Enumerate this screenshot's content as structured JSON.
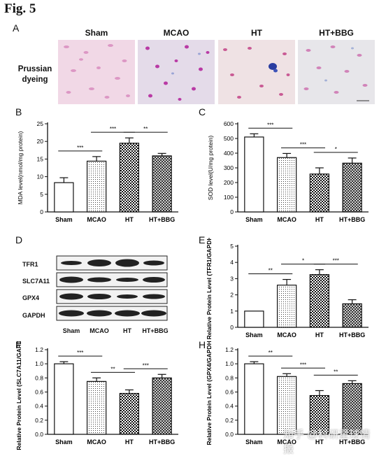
{
  "figure": {
    "title": "Fig. 5",
    "panels": [
      "A",
      "B",
      "C",
      "D",
      "E",
      "F",
      "H"
    ],
    "stain_label": "Prussian dyeing",
    "groups": [
      "Sham",
      "MCAO",
      "HT",
      "HT+BBG"
    ],
    "watermark": "知乎 @科研星球情报"
  },
  "chart_data": [
    {
      "panel": "B",
      "type": "bar",
      "categories": [
        "Sham",
        "MCAO",
        "HT",
        "HT+BBG"
      ],
      "values": [
        8.3,
        14.4,
        19.5,
        15.9
      ],
      "errors": [
        1.4,
        1.3,
        1.5,
        0.7
      ],
      "ylabel": "MDA level(nmol/mg protein)",
      "ylim": [
        0,
        25
      ],
      "yticks": [
        0,
        5,
        10,
        15,
        20,
        25
      ],
      "significance": [
        {
          "from": 0,
          "to": 1,
          "label": "***"
        },
        {
          "from": 1,
          "to": 2,
          "label": "***"
        },
        {
          "from": 2,
          "to": 3,
          "label": "**"
        }
      ]
    },
    {
      "panel": "C",
      "type": "bar",
      "categories": [
        "Sham",
        "MCAO",
        "HT",
        "HT+BBG"
      ],
      "values": [
        510,
        370,
        258,
        332
      ],
      "errors": [
        22,
        28,
        42,
        35
      ],
      "ylabel": "SOD level(U/mg protein)",
      "ylim": [
        0,
        600
      ],
      "yticks": [
        0,
        100,
        200,
        300,
        400,
        500,
        600
      ],
      "significance": [
        {
          "from": 0,
          "to": 1,
          "label": "***"
        },
        {
          "from": 1,
          "to": 2,
          "label": "***"
        },
        {
          "from": 2,
          "to": 3,
          "label": "*"
        }
      ]
    },
    {
      "panel": "E",
      "type": "bar",
      "categories": [
        "Sham",
        "MCAO",
        "HT",
        "HT+BBG"
      ],
      "values": [
        1.0,
        2.6,
        3.25,
        1.45
      ],
      "errors": [
        0.0,
        0.35,
        0.3,
        0.25
      ],
      "ylabel": "Relative Protein Level (TFR1/GAPDH)",
      "ylim": [
        0,
        5
      ],
      "yticks": [
        0,
        1,
        2,
        3,
        4,
        5
      ],
      "significance": [
        {
          "from": 0,
          "to": 1,
          "label": "**"
        },
        {
          "from": 1,
          "to": 2,
          "label": "*"
        },
        {
          "from": 2,
          "to": 3,
          "label": "***"
        }
      ]
    },
    {
      "panel": "F",
      "type": "bar",
      "categories": [
        "Sham",
        "MCAO",
        "HT",
        "HT+BBG"
      ],
      "values": [
        1.0,
        0.75,
        0.58,
        0.8
      ],
      "errors": [
        0.03,
        0.05,
        0.05,
        0.05
      ],
      "ylabel": "Relative Protein Level (SLC7A11/GAPDH)",
      "ylim": [
        0,
        1.2
      ],
      "yticks": [
        "0.0",
        "0.2",
        "0.4",
        "0.6",
        "0.8",
        "1.0",
        "1.2"
      ],
      "significance": [
        {
          "from": 0,
          "to": 1,
          "label": "***"
        },
        {
          "from": 1,
          "to": 2,
          "label": "**"
        },
        {
          "from": 2,
          "to": 3,
          "label": "***"
        }
      ]
    },
    {
      "panel": "H",
      "type": "bar",
      "categories": [
        "Sham",
        "MCAO",
        "HT",
        "HT+BBG"
      ],
      "values": [
        1.0,
        0.82,
        0.55,
        0.72
      ],
      "errors": [
        0.03,
        0.04,
        0.07,
        0.04
      ],
      "ylabel": "Relative Protein Level (GPX4/GAPDH)",
      "ylim": [
        0,
        1.2
      ],
      "yticks": [
        "0.0",
        "0.2",
        "0.4",
        "0.6",
        "0.8",
        "1.0",
        "1.2"
      ],
      "significance": [
        {
          "from": 0,
          "to": 1,
          "label": "**"
        },
        {
          "from": 1,
          "to": 2,
          "label": "***"
        },
        {
          "from": 2,
          "to": 3,
          "label": "**"
        }
      ]
    }
  ],
  "western_blot": {
    "proteins": [
      "TFR1",
      "SLC7A11",
      "GPX4",
      "GAPDH"
    ],
    "lanes": [
      "Sham",
      "MCAO",
      "HT",
      "HT+BBG"
    ]
  }
}
